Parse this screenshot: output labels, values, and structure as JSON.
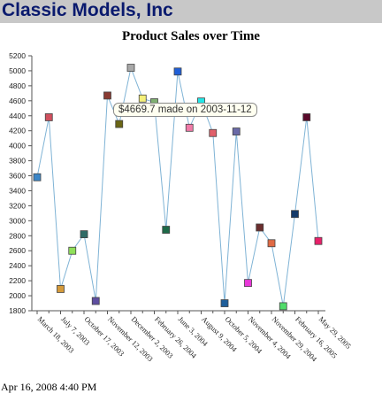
{
  "header": {
    "title": "Classic Models, Inc"
  },
  "footer": {
    "timestamp": "Apr 16, 2008 4:40 PM"
  },
  "tooltip": {
    "text": "$4669.7 made on 2003-11-12"
  },
  "chart_data": {
    "type": "line",
    "title": "Product Sales over Time",
    "xlabel": "",
    "ylabel": "",
    "ylim": [
      1800,
      5200
    ],
    "yticks": [
      1800,
      2000,
      2200,
      2400,
      2600,
      2800,
      3000,
      3200,
      3400,
      3600,
      3800,
      4000,
      4200,
      4400,
      4600,
      4800,
      5000,
      5200
    ],
    "x_tick_labels": [
      "March 18, 2003",
      "July 7, 2003",
      "October 17, 2003",
      "November 12, 2003",
      "December 2, 2003",
      "February 26, 2004",
      "June 3, 2004",
      "August 9, 2004",
      "October 5, 2004",
      "November 4, 2004",
      "November 29, 2004",
      "February 16, 2005",
      "May 29, 2005"
    ],
    "line_color": "#7fb3d5",
    "series": [
      {
        "values": [
          3580,
          4380,
          2090,
          2600,
          2820,
          1930,
          4669.7,
          4290,
          5040,
          4630,
          4580,
          2880,
          4990,
          4240,
          4590,
          4170,
          1900,
          4190,
          2170,
          2910,
          2700,
          1860,
          3090,
          4380,
          2730
        ]
      }
    ],
    "point_colors": [
      "#3a86c8",
      "#d0505e",
      "#d59a3a",
      "#8fe05a",
      "#2f6b66",
      "#5e4ea0",
      "#8a3b32",
      "#6b6615",
      "#a8a8a8",
      "#f5f07a",
      "#7faf70",
      "#1e6a48",
      "#1f5fd8",
      "#f07aa8",
      "#23e6e6",
      "#e0606a",
      "#1e5e9a",
      "#6a6aa8",
      "#e838d8",
      "#6b2e2e",
      "#e06a44",
      "#50dc6a",
      "#143a6a",
      "#5a0a2a",
      "#e8206a"
    ]
  }
}
